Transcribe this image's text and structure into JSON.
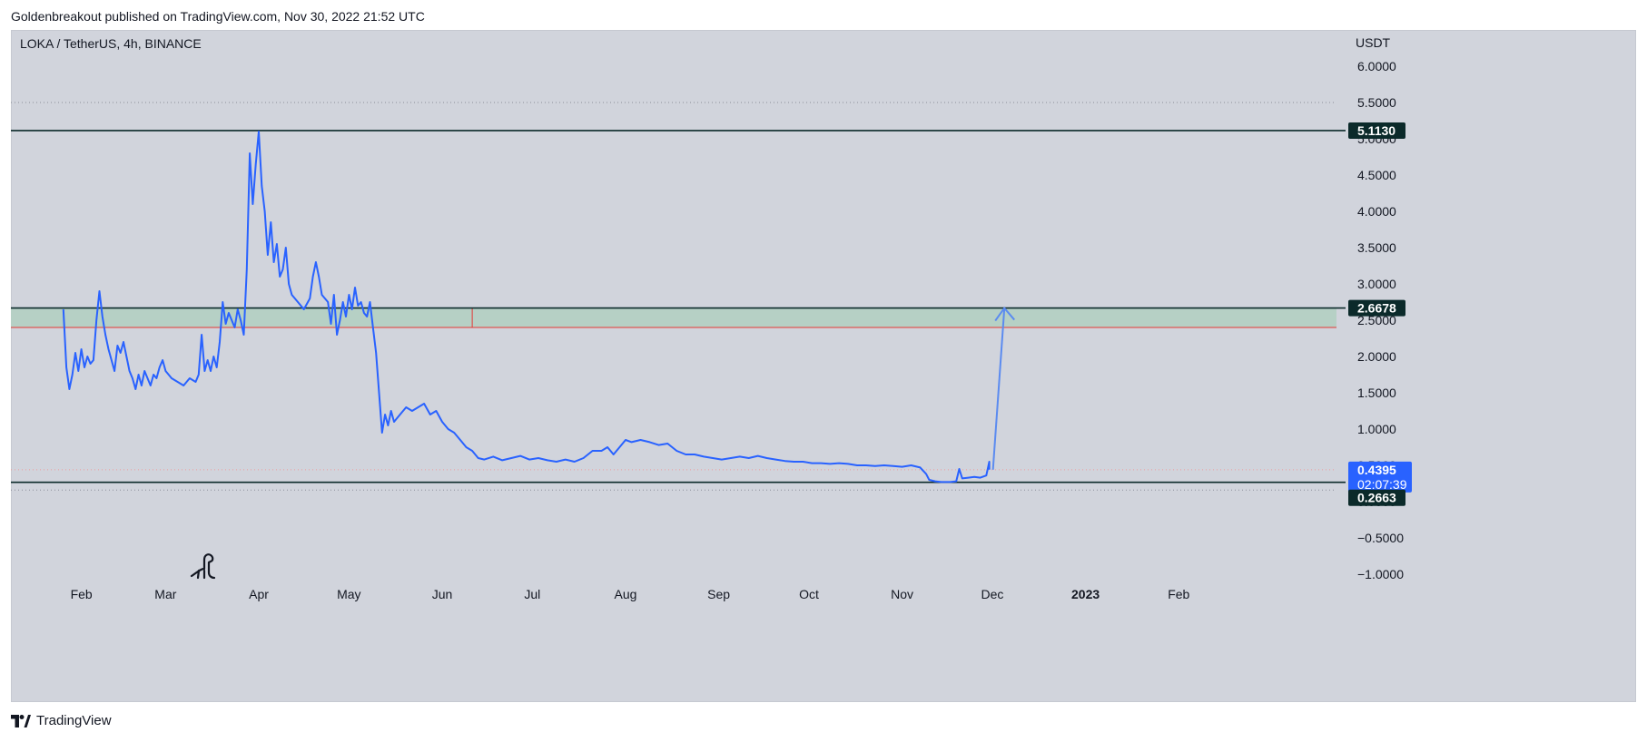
{
  "header": {
    "text": "Goldenbreakout published on TradingView.com, Nov 30, 2022 21:52 UTC"
  },
  "footer": {
    "brand": "TradingView",
    "logo_icon": "tradingview-logo-icon"
  },
  "chart_data": {
    "type": "line",
    "symbol_label": "LOKA / TetherUS, 4h, BINANCE",
    "currency_label": "USDT",
    "ylim": [
      -1.0,
      6.0
    ],
    "y_ticks": [
      6.0,
      5.5,
      5.0,
      4.5,
      4.0,
      3.5,
      3.0,
      2.5,
      2.0,
      1.5,
      1.0,
      0.5,
      0.0,
      -0.5,
      -1.0
    ],
    "y_tick_labels": [
      "6.0000",
      "5.5000",
      "5.0000",
      "4.5000",
      "4.0000",
      "3.5000",
      "3.0000",
      "2.5000",
      "2.0000",
      "1.5000",
      "1.0000",
      "0.5000",
      "0.0000",
      "−0.5000",
      "−1.0000"
    ],
    "x_ticks": [
      {
        "label": "Feb",
        "date": "2022-02-01",
        "bold": false
      },
      {
        "label": "Mar",
        "date": "2022-03-01",
        "bold": false
      },
      {
        "label": "Apr",
        "date": "2022-04-01",
        "bold": false
      },
      {
        "label": "May",
        "date": "2022-05-01",
        "bold": false
      },
      {
        "label": "Jun",
        "date": "2022-06-01",
        "bold": false
      },
      {
        "label": "Jul",
        "date": "2022-07-01",
        "bold": false
      },
      {
        "label": "Aug",
        "date": "2022-08-01",
        "bold": false
      },
      {
        "label": "Sep",
        "date": "2022-09-01",
        "bold": false
      },
      {
        "label": "Oct",
        "date": "2022-10-01",
        "bold": false
      },
      {
        "label": "Nov",
        "date": "2022-11-01",
        "bold": false
      },
      {
        "label": "Dec",
        "date": "2022-12-01",
        "bold": false
      },
      {
        "label": "2023",
        "date": "2023-01-01",
        "bold": true
      },
      {
        "label": "Feb",
        "date": "2023-02-01",
        "bold": false
      }
    ],
    "series": [
      {
        "color": "#2962ff",
        "points": [
          [
            "2022-01-26",
            2.65
          ],
          [
            "2022-01-27",
            1.85
          ],
          [
            "2022-01-28",
            1.55
          ],
          [
            "2022-01-29",
            1.75
          ],
          [
            "2022-01-30",
            2.05
          ],
          [
            "2022-01-31",
            1.8
          ],
          [
            "2022-02-01",
            2.1
          ],
          [
            "2022-02-02",
            1.85
          ],
          [
            "2022-02-03",
            2.0
          ],
          [
            "2022-02-04",
            1.9
          ],
          [
            "2022-02-05",
            1.95
          ],
          [
            "2022-02-06",
            2.5
          ],
          [
            "2022-02-07",
            2.9
          ],
          [
            "2022-02-08",
            2.55
          ],
          [
            "2022-02-09",
            2.3
          ],
          [
            "2022-02-10",
            2.1
          ],
          [
            "2022-02-11",
            1.95
          ],
          [
            "2022-02-12",
            1.8
          ],
          [
            "2022-02-13",
            2.15
          ],
          [
            "2022-02-14",
            2.05
          ],
          [
            "2022-02-15",
            2.2
          ],
          [
            "2022-02-16",
            2.0
          ],
          [
            "2022-02-17",
            1.8
          ],
          [
            "2022-02-18",
            1.7
          ],
          [
            "2022-02-19",
            1.55
          ],
          [
            "2022-02-20",
            1.75
          ],
          [
            "2022-02-21",
            1.6
          ],
          [
            "2022-02-22",
            1.8
          ],
          [
            "2022-02-23",
            1.7
          ],
          [
            "2022-02-24",
            1.6
          ],
          [
            "2022-02-25",
            1.75
          ],
          [
            "2022-02-26",
            1.7
          ],
          [
            "2022-02-27",
            1.85
          ],
          [
            "2022-02-28",
            1.95
          ],
          [
            "2022-03-01",
            1.8
          ],
          [
            "2022-03-03",
            1.7
          ],
          [
            "2022-03-05",
            1.65
          ],
          [
            "2022-03-07",
            1.6
          ],
          [
            "2022-03-09",
            1.7
          ],
          [
            "2022-03-11",
            1.65
          ],
          [
            "2022-03-12",
            1.75
          ],
          [
            "2022-03-13",
            2.3
          ],
          [
            "2022-03-14",
            1.8
          ],
          [
            "2022-03-15",
            1.95
          ],
          [
            "2022-03-16",
            1.8
          ],
          [
            "2022-03-17",
            2.0
          ],
          [
            "2022-03-18",
            1.85
          ],
          [
            "2022-03-19",
            2.2
          ],
          [
            "2022-03-20",
            2.75
          ],
          [
            "2022-03-21",
            2.45
          ],
          [
            "2022-03-22",
            2.6
          ],
          [
            "2022-03-23",
            2.5
          ],
          [
            "2022-03-24",
            2.4
          ],
          [
            "2022-03-25",
            2.65
          ],
          [
            "2022-03-26",
            2.5
          ],
          [
            "2022-03-27",
            2.3
          ],
          [
            "2022-03-28",
            3.2
          ],
          [
            "2022-03-29",
            4.8
          ],
          [
            "2022-03-30",
            4.1
          ],
          [
            "2022-03-31",
            4.65
          ],
          [
            "2022-04-01",
            5.1
          ],
          [
            "2022-04-02",
            4.35
          ],
          [
            "2022-04-03",
            4.0
          ],
          [
            "2022-04-04",
            3.4
          ],
          [
            "2022-04-05",
            3.85
          ],
          [
            "2022-04-06",
            3.3
          ],
          [
            "2022-04-07",
            3.55
          ],
          [
            "2022-04-08",
            3.1
          ],
          [
            "2022-04-09",
            3.2
          ],
          [
            "2022-04-10",
            3.5
          ],
          [
            "2022-04-11",
            3.0
          ],
          [
            "2022-04-12",
            2.85
          ],
          [
            "2022-04-14",
            2.75
          ],
          [
            "2022-04-16",
            2.65
          ],
          [
            "2022-04-18",
            2.8
          ],
          [
            "2022-04-19",
            3.1
          ],
          [
            "2022-04-20",
            3.3
          ],
          [
            "2022-04-21",
            3.1
          ],
          [
            "2022-04-22",
            2.85
          ],
          [
            "2022-04-24",
            2.75
          ],
          [
            "2022-04-25",
            2.45
          ],
          [
            "2022-04-26",
            2.85
          ],
          [
            "2022-04-27",
            2.3
          ],
          [
            "2022-04-28",
            2.5
          ],
          [
            "2022-04-29",
            2.75
          ],
          [
            "2022-04-30",
            2.55
          ],
          [
            "2022-05-01",
            2.85
          ],
          [
            "2022-05-02",
            2.65
          ],
          [
            "2022-05-03",
            2.95
          ],
          [
            "2022-05-04",
            2.7
          ],
          [
            "2022-05-05",
            2.75
          ],
          [
            "2022-05-06",
            2.6
          ],
          [
            "2022-05-07",
            2.55
          ],
          [
            "2022-05-08",
            2.75
          ],
          [
            "2022-05-09",
            2.4
          ],
          [
            "2022-05-10",
            2.05
          ],
          [
            "2022-05-11",
            1.5
          ],
          [
            "2022-05-12",
            0.95
          ],
          [
            "2022-05-13",
            1.2
          ],
          [
            "2022-05-14",
            1.05
          ],
          [
            "2022-05-15",
            1.25
          ],
          [
            "2022-05-16",
            1.1
          ],
          [
            "2022-05-18",
            1.2
          ],
          [
            "2022-05-20",
            1.3
          ],
          [
            "2022-05-22",
            1.25
          ],
          [
            "2022-05-24",
            1.3
          ],
          [
            "2022-05-26",
            1.35
          ],
          [
            "2022-05-28",
            1.2
          ],
          [
            "2022-05-30",
            1.25
          ],
          [
            "2022-06-01",
            1.1
          ],
          [
            "2022-06-03",
            1.0
          ],
          [
            "2022-06-05",
            0.95
          ],
          [
            "2022-06-07",
            0.85
          ],
          [
            "2022-06-09",
            0.75
          ],
          [
            "2022-06-11",
            0.7
          ],
          [
            "2022-06-13",
            0.6
          ],
          [
            "2022-06-15",
            0.58
          ],
          [
            "2022-06-18",
            0.62
          ],
          [
            "2022-06-21",
            0.57
          ],
          [
            "2022-06-24",
            0.6
          ],
          [
            "2022-06-27",
            0.63
          ],
          [
            "2022-06-30",
            0.58
          ],
          [
            "2022-07-03",
            0.6
          ],
          [
            "2022-07-06",
            0.57
          ],
          [
            "2022-07-09",
            0.55
          ],
          [
            "2022-07-12",
            0.58
          ],
          [
            "2022-07-15",
            0.55
          ],
          [
            "2022-07-18",
            0.6
          ],
          [
            "2022-07-21",
            0.7
          ],
          [
            "2022-07-24",
            0.7
          ],
          [
            "2022-07-26",
            0.75
          ],
          [
            "2022-07-28",
            0.65
          ],
          [
            "2022-07-30",
            0.75
          ],
          [
            "2022-08-01",
            0.85
          ],
          [
            "2022-08-03",
            0.82
          ],
          [
            "2022-08-06",
            0.85
          ],
          [
            "2022-08-09",
            0.82
          ],
          [
            "2022-08-12",
            0.78
          ],
          [
            "2022-08-15",
            0.8
          ],
          [
            "2022-08-18",
            0.7
          ],
          [
            "2022-08-21",
            0.65
          ],
          [
            "2022-08-24",
            0.65
          ],
          [
            "2022-08-27",
            0.62
          ],
          [
            "2022-08-30",
            0.6
          ],
          [
            "2022-09-02",
            0.58
          ],
          [
            "2022-09-05",
            0.6
          ],
          [
            "2022-09-08",
            0.62
          ],
          [
            "2022-09-11",
            0.6
          ],
          [
            "2022-09-14",
            0.63
          ],
          [
            "2022-09-17",
            0.6
          ],
          [
            "2022-09-20",
            0.58
          ],
          [
            "2022-09-23",
            0.56
          ],
          [
            "2022-09-26",
            0.55
          ],
          [
            "2022-09-29",
            0.55
          ],
          [
            "2022-10-02",
            0.53
          ],
          [
            "2022-10-05",
            0.53
          ],
          [
            "2022-10-08",
            0.52
          ],
          [
            "2022-10-11",
            0.53
          ],
          [
            "2022-10-14",
            0.52
          ],
          [
            "2022-10-17",
            0.5
          ],
          [
            "2022-10-20",
            0.5
          ],
          [
            "2022-10-23",
            0.49
          ],
          [
            "2022-10-26",
            0.5
          ],
          [
            "2022-10-29",
            0.49
          ],
          [
            "2022-11-01",
            0.48
          ],
          [
            "2022-11-04",
            0.5
          ],
          [
            "2022-11-07",
            0.47
          ],
          [
            "2022-11-09",
            0.38
          ],
          [
            "2022-11-10",
            0.3
          ],
          [
            "2022-11-12",
            0.28
          ],
          [
            "2022-11-14",
            0.27
          ],
          [
            "2022-11-17",
            0.27
          ],
          [
            "2022-11-19",
            0.28
          ],
          [
            "2022-11-20",
            0.45
          ],
          [
            "2022-11-21",
            0.32
          ],
          [
            "2022-11-23",
            0.33
          ],
          [
            "2022-11-25",
            0.34
          ],
          [
            "2022-11-27",
            0.33
          ],
          [
            "2022-11-29",
            0.36
          ],
          [
            "2022-11-30",
            0.55
          ],
          [
            "2022-11-30",
            0.4395
          ]
        ]
      }
    ],
    "support_zone": {
      "from": 2.4,
      "to": 2.6678,
      "fill": "#b6d0c5",
      "border": "#e53935",
      "x_start": "2022-01-01",
      "divider_date": "2022-06-11"
    },
    "horizontal_lines": [
      {
        "value": 5.113,
        "label": "5.1130",
        "color": "#0b2a2a"
      },
      {
        "value": 2.6678,
        "label": "2.6678",
        "color": "#0b2a2a"
      },
      {
        "value": 0.2663,
        "label": "0.2663",
        "color": "#0b2a2a"
      }
    ],
    "dotted_lines": [
      {
        "value": 5.5,
        "color": "#8a8e99"
      },
      {
        "value": 0.4395,
        "color": "#ef9a9a"
      },
      {
        "value": 0.16,
        "color": "#8a8e99"
      }
    ],
    "current_price": {
      "value": 0.4395,
      "label": "0.4395",
      "countdown": "02:07:39",
      "color": "#2962ff"
    },
    "arrow": {
      "from": [
        "2022-11-30",
        0.44
      ],
      "to": [
        "2022-12-05",
        2.6678
      ],
      "color": "#5b8bf0"
    },
    "watermark_icon": "dinosaur-icon"
  }
}
